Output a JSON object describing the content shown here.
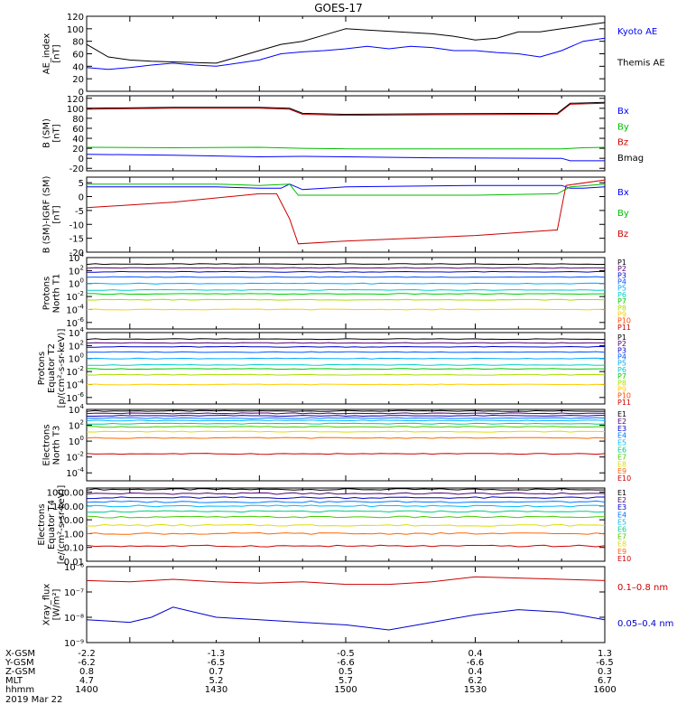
{
  "title": "GOES-17",
  "footer": {
    "rows": [
      {
        "label": "X-GSM",
        "values": [
          "-2.2",
          "-1.3",
          "-0.5",
          "0.4",
          "1.3"
        ]
      },
      {
        "label": "Y-GSM",
        "values": [
          "-6.2",
          "-6.5",
          "-6.6",
          "-6.6",
          "-6.5"
        ]
      },
      {
        "label": "Z-GSM",
        "values": [
          "0.8",
          "0.7",
          "0.5",
          "0.4",
          "0.3"
        ]
      },
      {
        "label": "MLT",
        "values": [
          "4.7",
          "5.2",
          "5.7",
          "6.2",
          "6.7"
        ]
      },
      {
        "label": "hhmm",
        "values": [
          "1400",
          "1430",
          "1500",
          "1530",
          "1600"
        ]
      }
    ],
    "date": "2019 Mar 22"
  },
  "chart_data": [
    {
      "type": "line",
      "ylabel": [
        "AE_index",
        "[nT]"
      ],
      "ylim": [
        0,
        120
      ],
      "yticks": [
        "120",
        "100",
        "80",
        "60",
        "40",
        "20",
        "0"
      ],
      "time_range": [
        "1400",
        "1600"
      ],
      "series": [
        {
          "name": "Kyoto AE",
          "color": "#0000ff",
          "x": [
            1400,
            1405,
            1410,
            1415,
            1420,
            1425,
            1430,
            1435,
            1440,
            1445,
            1450,
            1455,
            1500,
            1505,
            1510,
            1515,
            1520,
            1525,
            1530,
            1535,
            1540,
            1545,
            1550,
            1555,
            1600
          ],
          "y": [
            38,
            35,
            38,
            42,
            45,
            42,
            40,
            45,
            50,
            60,
            63,
            65,
            68,
            72,
            68,
            72,
            70,
            65,
            65,
            62,
            60,
            55,
            65,
            80,
            85
          ]
        },
        {
          "name": "Themis AE",
          "color": "#000000",
          "x": [
            1400,
            1405,
            1410,
            1415,
            1420,
            1425,
            1430,
            1435,
            1440,
            1445,
            1450,
            1455,
            1500,
            1505,
            1510,
            1515,
            1520,
            1525,
            1530,
            1535,
            1540,
            1545,
            1550,
            1555,
            1600
          ],
          "y": [
            75,
            55,
            50,
            48,
            47,
            46,
            45,
            55,
            65,
            75,
            80,
            90,
            100,
            98,
            96,
            94,
            92,
            88,
            82,
            85,
            95,
            95,
            100,
            105,
            110
          ]
        }
      ]
    },
    {
      "type": "line",
      "ylabel": [
        "B (SM)",
        "[nT]"
      ],
      "ylim": [
        -25,
        125
      ],
      "yticks": [
        "120",
        "100",
        "80",
        "60",
        "40",
        "20",
        "0",
        "-20"
      ],
      "time_range": [
        "1400",
        "1600"
      ],
      "series": [
        {
          "name": "Bx",
          "color": "#0000ff",
          "x": [
            1400,
            1420,
            1440,
            1450,
            1500,
            1520,
            1550,
            1552,
            1600
          ],
          "y": [
            8,
            6,
            3,
            4,
            3,
            1,
            0,
            -5,
            -5
          ]
        },
        {
          "name": "By",
          "color": "#00bb00",
          "x": [
            1400,
            1420,
            1440,
            1450,
            1500,
            1520,
            1550,
            1555,
            1600
          ],
          "y": [
            22,
            21,
            22,
            20,
            19,
            19,
            19,
            21,
            22
          ]
        },
        {
          "name": "Bz",
          "color": "#cc0000",
          "x": [
            1400,
            1420,
            1440,
            1447,
            1450,
            1500,
            1520,
            1549,
            1552,
            1600
          ],
          "y": [
            98,
            100,
            100,
            98,
            88,
            86,
            87,
            88,
            108,
            110
          ]
        },
        {
          "name": "Bmag",
          "color": "#000000",
          "x": [
            1400,
            1420,
            1440,
            1447,
            1450,
            1500,
            1520,
            1549,
            1552,
            1600
          ],
          "y": [
            100,
            102,
            102,
            100,
            90,
            88,
            89,
            90,
            110,
            112
          ]
        }
      ]
    },
    {
      "type": "line",
      "ylabel": [
        "B (SM)-IGRF (SM)",
        "[nT]"
      ],
      "ylim": [
        -20,
        7
      ],
      "yticks": [
        "5",
        "0",
        "-5",
        "-10",
        "-15",
        "-20"
      ],
      "time_range": [
        "1400",
        "1600"
      ],
      "series": [
        {
          "name": "Bx",
          "color": "#0000ff",
          "x": [
            1400,
            1430,
            1440,
            1445,
            1447,
            1450,
            1500,
            1530,
            1550,
            1552,
            1555,
            1600
          ],
          "y": [
            3.5,
            3.5,
            3.0,
            3.0,
            4.5,
            2.5,
            3.5,
            4.0,
            4.0,
            3.0,
            3.0,
            3.5
          ]
        },
        {
          "name": "By",
          "color": "#00bb00",
          "x": [
            1400,
            1430,
            1440,
            1447,
            1449,
            1500,
            1530,
            1549,
            1552,
            1600
          ],
          "y": [
            4.5,
            4.5,
            4.0,
            4.5,
            0.5,
            0.5,
            0.5,
            1.0,
            3.5,
            4.5
          ]
        },
        {
          "name": "Bz",
          "color": "#cc0000",
          "x": [
            1400,
            1420,
            1440,
            1444,
            1447,
            1449,
            1500,
            1530,
            1549,
            1551,
            1600
          ],
          "y": [
            -4,
            -2,
            1,
            1,
            -8,
            -17,
            -16,
            -14,
            -12,
            4,
            6
          ]
        }
      ]
    },
    {
      "type": "line",
      "scale": "log",
      "ylabel": [
        "Protons",
        "North T1"
      ],
      "ylim": [
        -7,
        4
      ],
      "yticks": [
        "4",
        "2",
        "0",
        "-2",
        "-4",
        "-6"
      ],
      "time_range": [
        "1400",
        "1600"
      ],
      "series": [
        {
          "name": "P1",
          "color": "#000000",
          "y": [
            3.0
          ]
        },
        {
          "name": "P2",
          "color": "#550077",
          "y": [
            2.4
          ]
        },
        {
          "name": "P3",
          "color": "#0000cc",
          "y": [
            1.8
          ]
        },
        {
          "name": "P4",
          "color": "#0055ff",
          "y": [
            1.0
          ]
        },
        {
          "name": "P5",
          "color": "#00aaff",
          "y": [
            0.0
          ]
        },
        {
          "name": "P6",
          "color": "#00cccc",
          "y": [
            -1.0
          ]
        },
        {
          "name": "P7",
          "color": "#00cc00",
          "y": [
            -1.6
          ]
        },
        {
          "name": "P8",
          "color": "#aadd00",
          "y": [
            -2.5
          ]
        },
        {
          "name": "P9",
          "color": "#ffcc00",
          "y": [
            -4.0
          ]
        },
        {
          "name": "P10",
          "color": "#ff4400",
          "y": []
        },
        {
          "name": "P11",
          "color": "#cc0000",
          "y": []
        }
      ]
    },
    {
      "type": "line",
      "scale": "log",
      "ylabel": [
        "Protons",
        "Equator T2",
        "[p/(cm²-s-sr-keV)]"
      ],
      "ylim": [
        -7,
        4
      ],
      "yticks": [
        "4",
        "2",
        "0",
        "-2",
        "-4",
        "-6"
      ],
      "time_range": [
        "1400",
        "1600"
      ],
      "series": [
        {
          "name": "P1",
          "color": "#000000",
          "y": [
            3.0
          ]
        },
        {
          "name": "P2",
          "color": "#550077",
          "y": [
            2.4
          ]
        },
        {
          "name": "P3",
          "color": "#0000cc",
          "y": [
            1.8
          ]
        },
        {
          "name": "P4",
          "color": "#0055ff",
          "y": [
            1.0
          ]
        },
        {
          "name": "P5",
          "color": "#00aaff",
          "y": [
            0.0
          ]
        },
        {
          "name": "P6",
          "color": "#00cccc",
          "y": [
            -1.0
          ]
        },
        {
          "name": "P7",
          "color": "#00cc00",
          "y": [
            -1.6
          ]
        },
        {
          "name": "P8",
          "color": "#aadd00",
          "y": [
            -2.5
          ]
        },
        {
          "name": "P9",
          "color": "#ffcc00",
          "y": [
            -4.0
          ]
        },
        {
          "name": "P10",
          "color": "#ff4400",
          "y": []
        },
        {
          "name": "P11",
          "color": "#cc0000",
          "y": []
        }
      ]
    },
    {
      "type": "line",
      "scale": "log",
      "ylabel": [
        "Electrons",
        "North T3"
      ],
      "ylim": [
        -5,
        4
      ],
      "yticks": [
        "4",
        "2",
        "0",
        "-2",
        "-4"
      ],
      "time_range": [
        "1400",
        "1600"
      ],
      "series": [
        {
          "name": "E1",
          "color": "#000000",
          "y": [
            3.8
          ]
        },
        {
          "name": "E2",
          "color": "#550077",
          "y": [
            3.5
          ]
        },
        {
          "name": "E3",
          "color": "#0000cc",
          "y": [
            3.2
          ]
        },
        {
          "name": "E4",
          "color": "#0077ff",
          "y": [
            2.9
          ]
        },
        {
          "name": "E5",
          "color": "#00bbff",
          "y": [
            2.6
          ]
        },
        {
          "name": "E6",
          "color": "#00cc88",
          "y": [
            2.2
          ]
        },
        {
          "name": "E7",
          "color": "#44cc00",
          "y": [
            1.8
          ]
        },
        {
          "name": "E8",
          "color": "#dddd00",
          "y": [
            1.2
          ]
        },
        {
          "name": "E9",
          "color": "#ff6600",
          "y": [
            0.4
          ]
        },
        {
          "name": "E10",
          "color": "#cc0000",
          "y": [
            -1.6
          ]
        }
      ]
    },
    {
      "type": "line",
      "scale": "log",
      "ylabel": [
        "Electrons",
        "Equator T4",
        "[e/(cm²-s-sr-keV)]"
      ],
      "ylim": [
        -2,
        3.3
      ],
      "yticks": [
        "1000.00",
        "100.00",
        "10.00",
        "1.00",
        "0.10",
        "0.01"
      ],
      "time_range": [
        "1400",
        "1600"
      ],
      "series": [
        {
          "name": "E1",
          "color": "#000000",
          "y": [
            3.2
          ]
        },
        {
          "name": "E2",
          "color": "#550077",
          "y": [
            2.9
          ]
        },
        {
          "name": "E3",
          "color": "#0000cc",
          "y": [
            2.6
          ]
        },
        {
          "name": "E4",
          "color": "#0077ff",
          "y": [
            2.3
          ]
        },
        {
          "name": "E5",
          "color": "#00bbff",
          "y": [
            2.0
          ]
        },
        {
          "name": "E6",
          "color": "#00cc88",
          "y": [
            1.6
          ]
        },
        {
          "name": "E7",
          "color": "#44cc00",
          "y": [
            1.2
          ]
        },
        {
          "name": "E8",
          "color": "#dddd00",
          "y": [
            0.6
          ]
        },
        {
          "name": "E9",
          "color": "#ff6600",
          "y": [
            0.0
          ]
        },
        {
          "name": "E10",
          "color": "#cc0000",
          "y": [
            -0.9
          ]
        }
      ]
    },
    {
      "type": "line",
      "scale": "log",
      "ylabel": [
        "Xray_flux",
        "[W/m²]"
      ],
      "ylim": [
        -9,
        -6
      ],
      "yticks": [
        "10⁻⁶",
        "10⁻⁷",
        "10⁻⁸",
        "10⁻⁹"
      ],
      "time_range": [
        "1400",
        "1600"
      ],
      "series": [
        {
          "name": "0.1–0.8 nm",
          "color": "#cc0000",
          "x": [
            1400,
            1410,
            1420,
            1430,
            1440,
            1450,
            1500,
            1510,
            1520,
            1530,
            1540,
            1550,
            1600
          ],
          "y": [
            -6.55,
            -6.6,
            -6.5,
            -6.6,
            -6.65,
            -6.6,
            -6.7,
            -6.7,
            -6.6,
            -6.4,
            -6.45,
            -6.5,
            -6.55
          ]
        },
        {
          "name": "0.05–0.4 nm",
          "color": "#0000cc",
          "x": [
            1400,
            1410,
            1415,
            1420,
            1430,
            1440,
            1450,
            1500,
            1510,
            1520,
            1530,
            1540,
            1550,
            1600
          ],
          "y": [
            -8.1,
            -8.2,
            -8.0,
            -7.6,
            -8.0,
            -8.1,
            -8.2,
            -8.3,
            -8.5,
            -8.2,
            -7.9,
            -7.7,
            -7.8,
            -8.1
          ]
        }
      ]
    }
  ]
}
